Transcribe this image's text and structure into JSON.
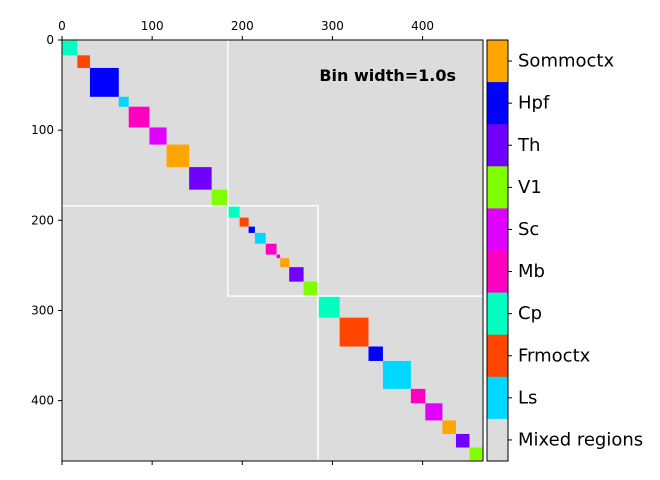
{
  "chart_data": {
    "type": "heatmap",
    "title": "",
    "xlabel": "",
    "ylabel": "",
    "xlim": [
      0,
      467
    ],
    "ylim": [
      467,
      0
    ],
    "x_ticks": [
      0,
      100,
      200,
      300,
      400
    ],
    "y_ticks": [
      0,
      100,
      200,
      300,
      400
    ],
    "background_label": "Mixed regions",
    "background_color": "#dcdcdc",
    "annotation": "Bin width=1.0s",
    "legend": [
      {
        "label": "Sommoctx",
        "color": "#ffa500"
      },
      {
        "label": "Hpf",
        "color": "#0000ff"
      },
      {
        "label": "Th",
        "color": "#7000ff"
      },
      {
        "label": "V1",
        "color": "#80ff00"
      },
      {
        "label": "Sc",
        "color": "#e000ff"
      },
      {
        "label": "Mb",
        "color": "#ff00c0"
      },
      {
        "label": "Cp",
        "color": "#00ffc0"
      },
      {
        "label": "Frmoctx",
        "color": "#ff4500"
      },
      {
        "label": "Ls",
        "color": "#00d8ff"
      },
      {
        "label": "Mixed regions",
        "color": "#dcdcdc"
      }
    ],
    "blocks": [
      {
        "start": 0,
        "end": 17,
        "region": "Cp"
      },
      {
        "start": 17,
        "end": 31,
        "region": "Frmoctx"
      },
      {
        "start": 31,
        "end": 63,
        "region": "Hpf"
      },
      {
        "start": 63,
        "end": 74,
        "region": "Ls"
      },
      {
        "start": 74,
        "end": 97,
        "region": "Mb"
      },
      {
        "start": 97,
        "end": 116,
        "region": "Sc"
      },
      {
        "start": 116,
        "end": 141,
        "region": "Sommoctx"
      },
      {
        "start": 141,
        "end": 166,
        "region": "Th"
      },
      {
        "start": 166,
        "end": 184,
        "region": "V1"
      },
      {
        "start": 184,
        "end": 197,
        "region": "Cp"
      },
      {
        "start": 197,
        "end": 207,
        "region": "Frmoctx"
      },
      {
        "start": 207,
        "end": 214,
        "region": "Hpf"
      },
      {
        "start": 214,
        "end": 226,
        "region": "Ls"
      },
      {
        "start": 226,
        "end": 238,
        "region": "Mb"
      },
      {
        "start": 238,
        "end": 242,
        "region": "Sc"
      },
      {
        "start": 242,
        "end": 252,
        "region": "Sommoctx"
      },
      {
        "start": 252,
        "end": 268,
        "region": "Th"
      },
      {
        "start": 268,
        "end": 284,
        "region": "V1"
      },
      {
        "start": 284,
        "end": 308,
        "region": "Cp"
      },
      {
        "start": 308,
        "end": 340,
        "region": "Frmoctx"
      },
      {
        "start": 340,
        "end": 356,
        "region": "Hpf"
      },
      {
        "start": 356,
        "end": 387,
        "region": "Ls"
      },
      {
        "start": 387,
        "end": 403,
        "region": "Mb"
      },
      {
        "start": 403,
        "end": 422,
        "region": "Sc"
      },
      {
        "start": 422,
        "end": 437,
        "region": "Sommoctx"
      },
      {
        "start": 437,
        "end": 452,
        "region": "Th"
      },
      {
        "start": 452,
        "end": 467,
        "region": "V1"
      }
    ],
    "outlines": [
      {
        "start": 0,
        "end": 184
      },
      {
        "start": 184,
        "end": 284
      },
      {
        "start": 284,
        "end": 467
      },
      {
        "x": [
          184,
          467
        ],
        "y": [
          0,
          284
        ]
      },
      {
        "x": [
          0,
          284
        ],
        "y": [
          184,
          467
        ]
      }
    ]
  }
}
